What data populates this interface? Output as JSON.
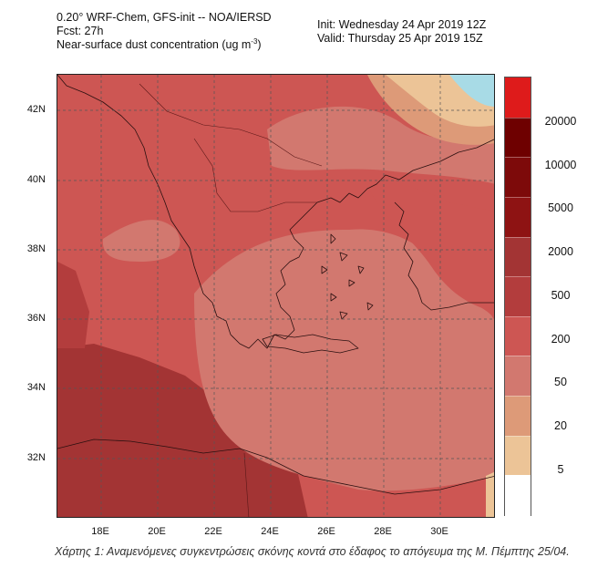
{
  "header": {
    "line1": "0.20° WRF-Chem, GFS-init -- NOA/IERSD",
    "line2": "Fcst: 27h",
    "line3_main": "Near-surface dust concentration (ug m",
    "line3_sup": "-3",
    "line3_end": ")",
    "init": "Init: Wednesday 24 Apr 2019  12Z",
    "valid": "Valid: Thursday 25 Apr 2019  15Z"
  },
  "map": {
    "latitude_labels": [
      "42N",
      "40N",
      "38N",
      "36N",
      "34N",
      "32N"
    ],
    "longitude_labels": [
      "18E",
      "20E",
      "22E",
      "24E",
      "26E",
      "28E",
      "30E"
    ]
  },
  "colorbar": {
    "levels": [
      "20000",
      "10000",
      "5000",
      "2000",
      "500",
      "200",
      "50",
      "20",
      "5"
    ],
    "colors": [
      "#de1b1b",
      "#6e0000",
      "#7d0a0a",
      "#8e1313",
      "#a33434",
      "#b33d3d",
      "#cd5653",
      "#d2786f",
      "#dd9a78",
      "#ecc497",
      "#ffffff"
    ]
  },
  "caption": "Χάρτης 1: Αναμενόμενες συγκεντρώσεις σκόνης κοντά στο έδαφος το απόγευμα της Μ. Πέμπτης 25/04."
}
